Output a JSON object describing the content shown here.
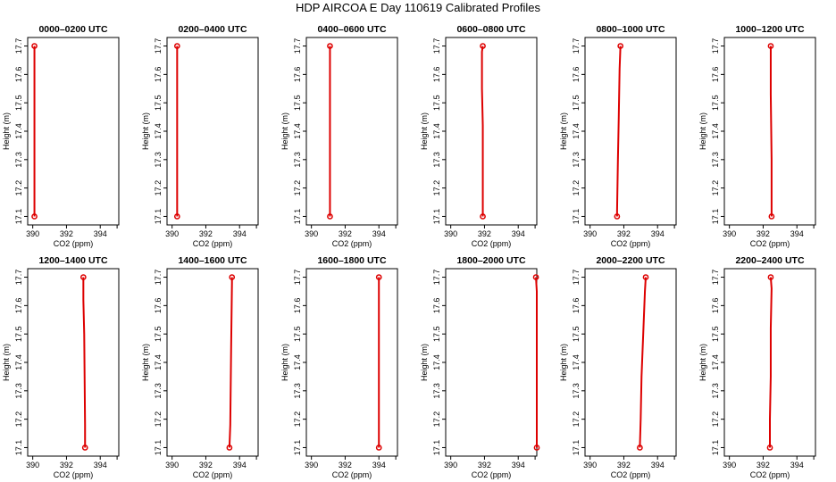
{
  "title": "HDP AIRCOA E  Day 110619  Calibrated Profiles",
  "colors": {
    "series": "#dd0000",
    "axes": "#000000",
    "background": "#ffffff"
  },
  "chart_data": [
    {
      "type": "line",
      "title": "0000–0200 UTC",
      "xlabel": "CO2 (ppm)",
      "ylabel": "Height (m)",
      "xlim": [
        389.7,
        395.1
      ],
      "ylim": [
        17.07,
        17.73
      ],
      "xticks": [
        "390",
        "392",
        "394"
      ],
      "yticks": [
        "17.1",
        "17.2",
        "17.3",
        "17.4",
        "17.5",
        "17.6",
        "17.7"
      ],
      "grid": false,
      "x": [
        390.1,
        390.1,
        390.1,
        390.1,
        390.1,
        390.1
      ],
      "y": [
        17.1,
        17.16,
        17.3,
        17.55,
        17.65,
        17.7
      ]
    },
    {
      "type": "line",
      "title": "0200–0400 UTC",
      "xlabel": "CO2 (ppm)",
      "ylabel": "Height (m)",
      "xlim": [
        389.7,
        395.1
      ],
      "ylim": [
        17.07,
        17.73
      ],
      "xticks": [
        "390",
        "392",
        "394"
      ],
      "yticks": [
        "17.1",
        "17.2",
        "17.3",
        "17.4",
        "17.5",
        "17.6",
        "17.7"
      ],
      "grid": false,
      "x": [
        390.3,
        390.3,
        390.3,
        390.3
      ],
      "y": [
        17.1,
        17.13,
        17.68,
        17.7
      ]
    },
    {
      "type": "line",
      "title": "0400–0600 UTC",
      "xlabel": "CO2 (ppm)",
      "ylabel": "Height (m)",
      "xlim": [
        389.7,
        395.1
      ],
      "ylim": [
        17.07,
        17.73
      ],
      "xticks": [
        "390",
        "392",
        "394"
      ],
      "yticks": [
        "17.1",
        "17.2",
        "17.3",
        "17.4",
        "17.5",
        "17.6",
        "17.7"
      ],
      "grid": false,
      "x": [
        391.1,
        391.1
      ],
      "y": [
        17.1,
        17.7
      ]
    },
    {
      "type": "line",
      "title": "0600–0800 UTC",
      "xlabel": "CO2 (ppm)",
      "ylabel": "Height (m)",
      "xlim": [
        389.7,
        395.1
      ],
      "ylim": [
        17.07,
        17.73
      ],
      "xticks": [
        "390",
        "392",
        "394"
      ],
      "yticks": [
        "17.1",
        "17.2",
        "17.3",
        "17.4",
        "17.5",
        "17.6",
        "17.7"
      ],
      "grid": false,
      "x": [
        391.9,
        391.9,
        391.9,
        391.85,
        391.85,
        391.9
      ],
      "y": [
        17.1,
        17.2,
        17.42,
        17.55,
        17.68,
        17.7
      ]
    },
    {
      "type": "line",
      "title": "0800–1000 UTC",
      "xlabel": "CO2 (ppm)",
      "ylabel": "Height (m)",
      "xlim": [
        389.7,
        395.1
      ],
      "ylim": [
        17.07,
        17.73
      ],
      "xticks": [
        "390",
        "392",
        "394"
      ],
      "yticks": [
        "17.1",
        "17.2",
        "17.3",
        "17.4",
        "17.5",
        "17.6",
        "17.7"
      ],
      "grid": false,
      "x": [
        391.6,
        391.6,
        391.65,
        391.7,
        391.75,
        391.8
      ],
      "y": [
        17.1,
        17.12,
        17.3,
        17.45,
        17.62,
        17.7
      ]
    },
    {
      "type": "line",
      "title": "1000–1200 UTC",
      "xlabel": "CO2 (ppm)",
      "ylabel": "Height (m)",
      "xlim": [
        389.7,
        395.1
      ],
      "ylim": [
        17.07,
        17.73
      ],
      "xticks": [
        "390",
        "392",
        "394"
      ],
      "yticks": [
        "17.1",
        "17.2",
        "17.3",
        "17.4",
        "17.5",
        "17.6",
        "17.7"
      ],
      "grid": false,
      "x": [
        392.5,
        392.5,
        392.45,
        392.45,
        392.45
      ],
      "y": [
        17.1,
        17.3,
        17.53,
        17.68,
        17.7
      ]
    },
    {
      "type": "line",
      "title": "1200–1400 UTC",
      "xlabel": "CO2 (ppm)",
      "ylabel": "Height (m)",
      "xlim": [
        389.7,
        395.1
      ],
      "ylim": [
        17.07,
        17.73
      ],
      "xticks": [
        "390",
        "392",
        "394"
      ],
      "yticks": [
        "17.1",
        "17.2",
        "17.3",
        "17.4",
        "17.5",
        "17.6",
        "17.7"
      ],
      "grid": false,
      "x": [
        393.1,
        393.1,
        393.05,
        393.0,
        393.0
      ],
      "y": [
        17.1,
        17.18,
        17.5,
        17.62,
        17.7
      ]
    },
    {
      "type": "line",
      "title": "1400–1600 UTC",
      "xlabel": "CO2 (ppm)",
      "ylabel": "Height (m)",
      "xlim": [
        389.7,
        395.1
      ],
      "ylim": [
        17.07,
        17.73
      ],
      "xticks": [
        "390",
        "392",
        "394"
      ],
      "yticks": [
        "17.1",
        "17.2",
        "17.3",
        "17.4",
        "17.5",
        "17.6",
        "17.7"
      ],
      "grid": false,
      "x": [
        393.4,
        393.45,
        393.5,
        393.55,
        393.55
      ],
      "y": [
        17.1,
        17.18,
        17.45,
        17.68,
        17.7
      ]
    },
    {
      "type": "line",
      "title": "1600–1800 UTC",
      "xlabel": "CO2 (ppm)",
      "ylabel": "Height (m)",
      "xlim": [
        389.7,
        395.1
      ],
      "ylim": [
        17.07,
        17.73
      ],
      "xticks": [
        "390",
        "392",
        "394"
      ],
      "yticks": [
        "17.1",
        "17.2",
        "17.3",
        "17.4",
        "17.5",
        "17.6",
        "17.7"
      ],
      "grid": false,
      "x": [
        394.0,
        394.0,
        394.0,
        394.0
      ],
      "y": [
        17.1,
        17.18,
        17.68,
        17.7
      ]
    },
    {
      "type": "line",
      "title": "1800–2000 UTC",
      "xlabel": "CO2 (ppm)",
      "ylabel": "Height (m)",
      "xlim": [
        389.7,
        395.1
      ],
      "ylim": [
        17.07,
        17.73
      ],
      "xticks": [
        "390",
        "392",
        "394"
      ],
      "yticks": [
        "17.1",
        "17.2",
        "17.3",
        "17.4",
        "17.5",
        "17.6",
        "17.7"
      ],
      "grid": false,
      "x": [
        395.1,
        395.1,
        395.1,
        395.05
      ],
      "y": [
        17.1,
        17.3,
        17.65,
        17.7
      ]
    },
    {
      "type": "line",
      "title": "2000–2200 UTC",
      "xlabel": "CO2 (ppm)",
      "ylabel": "Height (m)",
      "xlim": [
        389.7,
        395.1
      ],
      "ylim": [
        17.07,
        17.73
      ],
      "xticks": [
        "390",
        "392",
        "394"
      ],
      "yticks": [
        "17.1",
        "17.2",
        "17.3",
        "17.4",
        "17.5",
        "17.6",
        "17.7"
      ],
      "grid": false,
      "x": [
        392.95,
        393.0,
        393.05,
        393.15,
        393.25,
        393.3
      ],
      "y": [
        17.1,
        17.2,
        17.35,
        17.5,
        17.65,
        17.7
      ]
    },
    {
      "type": "line",
      "title": "2200–2400 UTC",
      "xlabel": "CO2 (ppm)",
      "ylabel": "Height (m)",
      "xlim": [
        389.7,
        395.1
      ],
      "ylim": [
        17.07,
        17.73
      ],
      "xticks": [
        "390",
        "392",
        "394"
      ],
      "yticks": [
        "17.1",
        "17.2",
        "17.3",
        "17.4",
        "17.5",
        "17.6",
        "17.7"
      ],
      "grid": false,
      "x": [
        392.4,
        392.4,
        392.45,
        392.45,
        392.5,
        392.45
      ],
      "y": [
        17.1,
        17.2,
        17.35,
        17.52,
        17.66,
        17.7
      ]
    }
  ]
}
